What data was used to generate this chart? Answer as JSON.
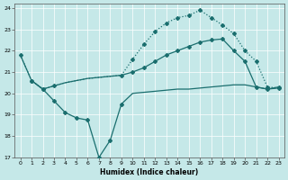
{
  "xlabel": "Humidex (Indice chaleur)",
  "bg_color": "#c5e8e8",
  "grid_color": "#ffffff",
  "line_color": "#1a6e6e",
  "xlim": [
    -0.5,
    23.5
  ],
  "ylim": [
    17,
    24.2
  ],
  "yticks": [
    17,
    18,
    19,
    20,
    21,
    22,
    23,
    24
  ],
  "xticks": [
    0,
    1,
    2,
    3,
    4,
    5,
    6,
    7,
    8,
    9,
    10,
    11,
    12,
    13,
    14,
    15,
    16,
    17,
    18,
    19,
    20,
    21,
    22,
    23
  ],
  "line1_x": [
    0,
    1,
    2,
    3,
    4,
    5,
    6,
    7,
    8,
    9,
    10,
    11,
    12,
    13,
    14,
    15,
    16,
    17,
    18,
    19,
    20,
    21,
    22,
    23
  ],
  "line1_y": [
    21.8,
    20.6,
    20.2,
    20.35,
    20.5,
    20.6,
    20.7,
    20.75,
    20.8,
    20.85,
    21.0,
    21.2,
    21.5,
    21.8,
    22.0,
    22.2,
    22.4,
    22.5,
    22.55,
    22.0,
    21.5,
    20.3,
    20.2,
    20.3
  ],
  "line2_x": [
    0,
    1,
    2,
    3,
    4,
    5,
    6,
    7,
    8,
    9,
    10,
    11,
    12,
    13,
    14,
    15,
    16,
    17,
    18,
    19,
    20,
    21,
    22,
    23
  ],
  "line2_y": [
    21.8,
    20.6,
    20.2,
    20.35,
    20.5,
    20.6,
    20.7,
    20.75,
    20.8,
    20.85,
    21.6,
    22.3,
    22.9,
    23.3,
    23.55,
    23.65,
    23.9,
    23.55,
    23.2,
    22.8,
    22.0,
    21.5,
    20.3,
    20.25
  ],
  "line3_x": [
    1,
    2,
    3,
    4,
    5,
    6,
    7,
    8,
    9,
    10,
    11,
    12,
    13,
    14,
    15,
    16,
    17,
    18,
    19,
    20,
    21,
    22,
    23
  ],
  "line3_y": [
    20.6,
    20.2,
    19.65,
    19.1,
    18.85,
    18.75,
    17.0,
    17.8,
    19.5,
    20.0,
    20.05,
    20.1,
    20.15,
    20.2,
    20.2,
    20.25,
    20.3,
    20.35,
    20.4,
    20.4,
    20.3,
    20.2,
    20.25
  ],
  "line1_marker_x": [
    0,
    1,
    2,
    3,
    9,
    10,
    11,
    12,
    13,
    14,
    15,
    16,
    17,
    18,
    19,
    20,
    21,
    22,
    23
  ],
  "line1_marker_y": [
    21.8,
    20.6,
    20.2,
    20.35,
    20.85,
    21.0,
    21.2,
    21.5,
    21.8,
    22.0,
    22.2,
    22.4,
    22.5,
    22.55,
    22.0,
    21.5,
    20.3,
    20.2,
    20.3
  ],
  "line2_marker_x": [
    10,
    11,
    12,
    13,
    14,
    15,
    16,
    17,
    18,
    19,
    20,
    21,
    22,
    23
  ],
  "line2_marker_y": [
    21.6,
    22.3,
    22.9,
    23.3,
    23.55,
    23.65,
    23.9,
    23.55,
    23.2,
    22.8,
    22.0,
    21.5,
    20.3,
    20.25
  ],
  "line3_marker_x": [
    1,
    2,
    3,
    4,
    5,
    6,
    7,
    8,
    9
  ],
  "line3_marker_y": [
    20.6,
    20.2,
    19.65,
    19.1,
    18.85,
    18.75,
    17.0,
    17.8,
    19.5
  ],
  "markersize": 2.0,
  "linewidth": 0.9,
  "tick_fontsize": 4.5,
  "xlabel_fontsize": 5.5
}
